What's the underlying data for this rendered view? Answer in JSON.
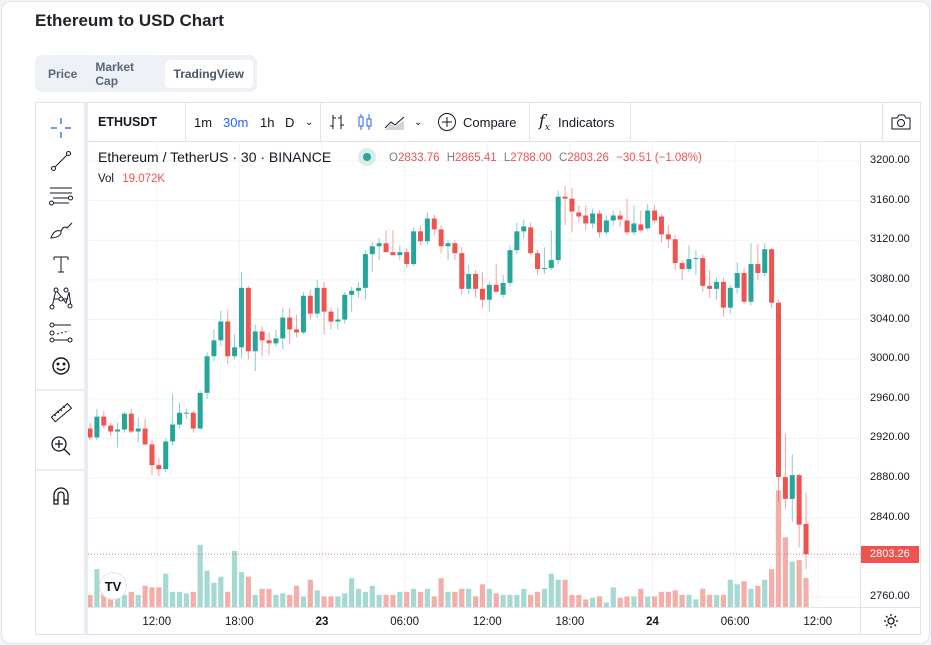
{
  "title": "Ethereum to USD Chart",
  "tabs": [
    {
      "label": "Price"
    },
    {
      "label": "Market Cap"
    },
    {
      "label": "TradingView",
      "active": true
    }
  ],
  "toolbar": {
    "symbol": "ETHUSDT",
    "intervals": [
      "1m",
      "30m",
      "1h",
      "D"
    ],
    "active_interval": "30m",
    "compare": "Compare",
    "indicators": "Indicators"
  },
  "legend": {
    "name": "Ethereum / TetherUS · 30 · BINANCE",
    "o_label": "O",
    "o": "2833.76",
    "h_label": "H",
    "h": "2865.41",
    "l_label": "L",
    "l": "2788.00",
    "c_label": "C",
    "c": "2803.26",
    "change": "−30.51 (−1.08%)",
    "vol_label": "Vol",
    "vol": "19.072K"
  },
  "colors": {
    "up": "#26a69a",
    "down": "#ef5350",
    "up_vol": "#a7d9d3",
    "down_vol": "#f3aeaa",
    "accent": "#2962ff"
  },
  "chart_data": {
    "type": "candlestick",
    "price_ticks": [
      "3200.00",
      "3160.00",
      "3120.00",
      "3080.00",
      "3040.00",
      "3000.00",
      "2960.00",
      "2920.00",
      "2880.00",
      "2840.00",
      "2800.00",
      "2760.00"
    ],
    "ylim": [
      2760,
      3200
    ],
    "last_price": "2803.26",
    "time_ticks": [
      {
        "label": "12:00",
        "index": 9.7
      },
      {
        "label": "18:00",
        "index": 21.7
      },
      {
        "label": "23",
        "index": 33.7,
        "day": true
      },
      {
        "label": "06:00",
        "index": 45.7
      },
      {
        "label": "12:00",
        "index": 57.7
      },
      {
        "label": "18:00",
        "index": 69.7
      },
      {
        "label": "24",
        "index": 81.7,
        "day": true
      },
      {
        "label": "06:00",
        "index": 93.7
      },
      {
        "label": "12:00",
        "index": 105.7
      }
    ],
    "candles_ohlcv": [
      [
        2930,
        2936,
        2918,
        2921,
        8
      ],
      [
        2921,
        2950,
        2918,
        2942,
        25
      ],
      [
        2942,
        2948,
        2930,
        2933,
        12
      ],
      [
        2933,
        2936,
        2922,
        2927,
        9
      ],
      [
        2927,
        2936,
        2911,
        2929,
        8
      ],
      [
        2929,
        2947,
        2926,
        2945,
        8
      ],
      [
        2945,
        2950,
        2925,
        2927,
        10
      ],
      [
        2927,
        2941,
        2916,
        2930,
        8
      ],
      [
        2930,
        2940,
        2913,
        2914,
        14
      ],
      [
        2914,
        2918,
        2883,
        2893,
        13
      ],
      [
        2893,
        2900,
        2882,
        2889,
        13
      ],
      [
        2889,
        2920,
        2886,
        2917,
        22
      ],
      [
        2917,
        2965,
        2913,
        2934,
        10
      ],
      [
        2934,
        2956,
        2930,
        2946,
        10
      ],
      [
        2945,
        2950,
        2940,
        2946,
        9
      ],
      [
        2946,
        2948,
        2926,
        2930,
        10
      ],
      [
        2930,
        2968,
        2929,
        2966,
        41
      ],
      [
        2966,
        3007,
        2960,
        3003,
        24
      ],
      [
        3003,
        3030,
        2998,
        3019,
        16
      ],
      [
        3019,
        3049,
        3013,
        3038,
        20
      ],
      [
        3038,
        3050,
        2995,
        3003,
        10
      ],
      [
        3003,
        3025,
        3000,
        3012,
        37
      ],
      [
        3012,
        3088,
        3001,
        3072,
        23
      ],
      [
        3072,
        3074,
        3000,
        3008,
        20
      ],
      [
        3008,
        3035,
        2988,
        3028,
        8
      ],
      [
        3028,
        3033,
        3003,
        3019,
        12
      ],
      [
        3019,
        3027,
        3004,
        3016,
        12
      ],
      [
        3016,
        3030,
        3012,
        3021,
        8
      ],
      [
        3021,
        3052,
        3010,
        3042,
        9
      ],
      [
        3042,
        3052,
        3015,
        3030,
        8
      ],
      [
        3030,
        3045,
        3022,
        3027,
        14
      ],
      [
        3027,
        3068,
        3025,
        3064,
        7
      ],
      [
        3064,
        3070,
        3040,
        3046,
        18
      ],
      [
        3046,
        3080,
        3042,
        3072,
        11
      ],
      [
        3072,
        3078,
        3025,
        3048,
        7
      ],
      [
        3048,
        3052,
        3030,
        3038,
        7
      ],
      [
        3038,
        3052,
        3030,
        3040,
        7
      ],
      [
        3040,
        3068,
        3036,
        3065,
        9
      ],
      [
        3065,
        3073,
        3048,
        3069,
        19
      ],
      [
        3069,
        3078,
        3062,
        3072,
        12
      ],
      [
        3072,
        3110,
        3060,
        3106,
        10
      ],
      [
        3106,
        3118,
        3088,
        3114,
        14
      ],
      [
        3114,
        3122,
        3100,
        3117,
        8
      ],
      [
        3117,
        3130,
        3108,
        3108,
        8
      ],
      [
        3108,
        3130,
        3105,
        3105,
        8
      ],
      [
        3105,
        3115,
        3100,
        3108,
        10
      ],
      [
        3108,
        3112,
        3092,
        3096,
        10
      ],
      [
        3096,
        3133,
        3094,
        3129,
        12
      ],
      [
        3129,
        3135,
        3115,
        3119,
        10
      ],
      [
        3119,
        3148,
        3116,
        3142,
        12
      ],
      [
        3142,
        3146,
        3125,
        3131,
        7
      ],
      [
        3131,
        3135,
        3107,
        3114,
        19
      ],
      [
        3114,
        3120,
        3100,
        3117,
        10
      ],
      [
        3117,
        3120,
        3100,
        3107,
        10
      ],
      [
        3107,
        3113,
        3065,
        3071,
        12
      ],
      [
        3071,
        3095,
        3066,
        3086,
        12
      ],
      [
        3086,
        3090,
        3062,
        3071,
        7
      ],
      [
        3071,
        3088,
        3052,
        3060,
        15
      ],
      [
        3060,
        3078,
        3048,
        3075,
        12
      ],
      [
        3075,
        3096,
        3068,
        3068,
        9
      ],
      [
        3065,
        3085,
        3062,
        3077,
        8
      ],
      [
        3077,
        3115,
        3073,
        3110,
        8
      ],
      [
        3110,
        3138,
        3106,
        3129,
        8
      ],
      [
        3129,
        3141,
        3122,
        3134,
        12
      ],
      [
        3133,
        3138,
        3105,
        3107,
        8
      ],
      [
        3107,
        3110,
        3085,
        3091,
        10
      ],
      [
        3092,
        3113,
        3086,
        3092,
        12
      ],
      [
        3092,
        3130,
        3090,
        3100,
        22
      ],
      [
        3100,
        3170,
        3096,
        3164,
        18
      ],
      [
        3164,
        3175,
        3135,
        3162,
        18
      ],
      [
        3162,
        3173,
        3128,
        3149,
        8
      ],
      [
        3148,
        3155,
        3138,
        3144,
        8
      ],
      [
        3145,
        3155,
        3130,
        3137,
        5
      ],
      [
        3137,
        3152,
        3132,
        3147,
        6
      ],
      [
        3147,
        3150,
        3123,
        3128,
        7
      ],
      [
        3128,
        3145,
        3125,
        3140,
        3
      ],
      [
        3140,
        3150,
        3135,
        3145,
        13
      ],
      [
        3145,
        3150,
        3133,
        3141,
        6
      ],
      [
        3140,
        3162,
        3125,
        3128,
        7
      ],
      [
        3128,
        3155,
        3125,
        3137,
        7
      ],
      [
        3136,
        3150,
        3128,
        3130,
        12
      ],
      [
        3132,
        3157,
        3130,
        3150,
        7
      ],
      [
        3150,
        3155,
        3137,
        3140,
        7
      ],
      [
        3144,
        3146,
        3118,
        3126,
        10
      ],
      [
        3126,
        3135,
        3112,
        3121,
        10
      ],
      [
        3121,
        3125,
        3090,
        3097,
        11
      ],
      [
        3097,
        3100,
        3080,
        3091,
        8
      ],
      [
        3091,
        3115,
        3088,
        3101,
        8
      ],
      [
        3101,
        3110,
        3085,
        3102,
        5
      ],
      [
        3102,
        3106,
        3068,
        3074,
        12
      ],
      [
        3074,
        3090,
        3062,
        3071,
        8
      ],
      [
        3071,
        3082,
        3060,
        3078,
        8
      ],
      [
        3078,
        3082,
        3043,
        3052,
        8
      ],
      [
        3052,
        3075,
        3046,
        3072,
        18
      ],
      [
        3072,
        3098,
        3066,
        3087,
        15
      ],
      [
        3087,
        3092,
        3056,
        3058,
        17
      ],
      [
        3058,
        3117,
        3054,
        3096,
        12
      ],
      [
        3096,
        3116,
        3080,
        3087,
        14
      ],
      [
        3087,
        3117,
        3084,
        3111,
        18
      ],
      [
        3111,
        3112,
        3052,
        3057,
        25
      ],
      [
        3057,
        3060,
        2856,
        2881,
        77
      ],
      [
        2881,
        2925,
        2849,
        2859,
        46
      ],
      [
        2859,
        2904,
        2836,
        2883,
        30
      ],
      [
        2883,
        2885,
        2810,
        2833,
        31
      ],
      [
        2833.76,
        2865.41,
        2788,
        2803.26,
        19.072
      ]
    ]
  }
}
